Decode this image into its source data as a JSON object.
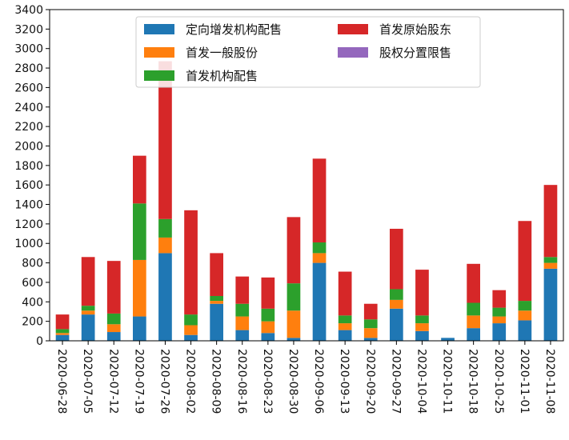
{
  "chart_data": {
    "type": "bar",
    "stacked": true,
    "categories": [
      "2020-06-28",
      "2020-07-05",
      "2020-07-12",
      "2020-07-19",
      "2020-07-26",
      "2020-08-02",
      "2020-08-09",
      "2020-08-16",
      "2020-08-23",
      "2020-08-30",
      "2020-09-06",
      "2020-09-13",
      "2020-09-20",
      "2020-09-27",
      "2020-10-04",
      "2020-10-11",
      "2020-10-18",
      "2020-10-25",
      "2020-11-01",
      "2020-11-08"
    ],
    "series": [
      {
        "name": "定向增发机构配售",
        "color": "#1f77b4",
        "values": [
          60,
          270,
          90,
          250,
          900,
          60,
          380,
          110,
          80,
          30,
          800,
          110,
          30,
          330,
          100,
          30,
          130,
          180,
          210,
          740
        ]
      },
      {
        "name": "首发一般股份",
        "color": "#ff7f0e",
        "values": [
          20,
          40,
          80,
          580,
          160,
          100,
          30,
          140,
          120,
          280,
          100,
          70,
          100,
          90,
          80,
          0,
          130,
          70,
          100,
          60
        ]
      },
      {
        "name": "首发机构配售",
        "color": "#2ca02c",
        "values": [
          40,
          50,
          110,
          580,
          190,
          110,
          50,
          130,
          130,
          280,
          110,
          80,
          90,
          110,
          80,
          0,
          130,
          90,
          100,
          60
        ]
      },
      {
        "name": "首发原始股东",
        "color": "#d62728",
        "values": [
          150,
          500,
          540,
          490,
          1620,
          1070,
          440,
          280,
          320,
          680,
          860,
          450,
          160,
          620,
          470,
          0,
          400,
          180,
          820,
          740
        ]
      },
      {
        "name": "股权分置限售",
        "color": "#9467bd",
        "values": [
          0,
          0,
          0,
          0,
          0,
          0,
          0,
          0,
          0,
          0,
          0,
          0,
          0,
          0,
          0,
          0,
          0,
          0,
          0,
          0
        ]
      }
    ],
    "yticks": [
      "0",
      "200",
      "400",
      "600",
      "800",
      "1000",
      "1200",
      "1400",
      "1600",
      "1800",
      "2000",
      "2200",
      "2400",
      "2600",
      "2800",
      "3000",
      "3200",
      "3400"
    ],
    "ylim": [
      0,
      3400
    ],
    "grid": false,
    "legend_position": "top-center",
    "legend_columns": 2
  }
}
